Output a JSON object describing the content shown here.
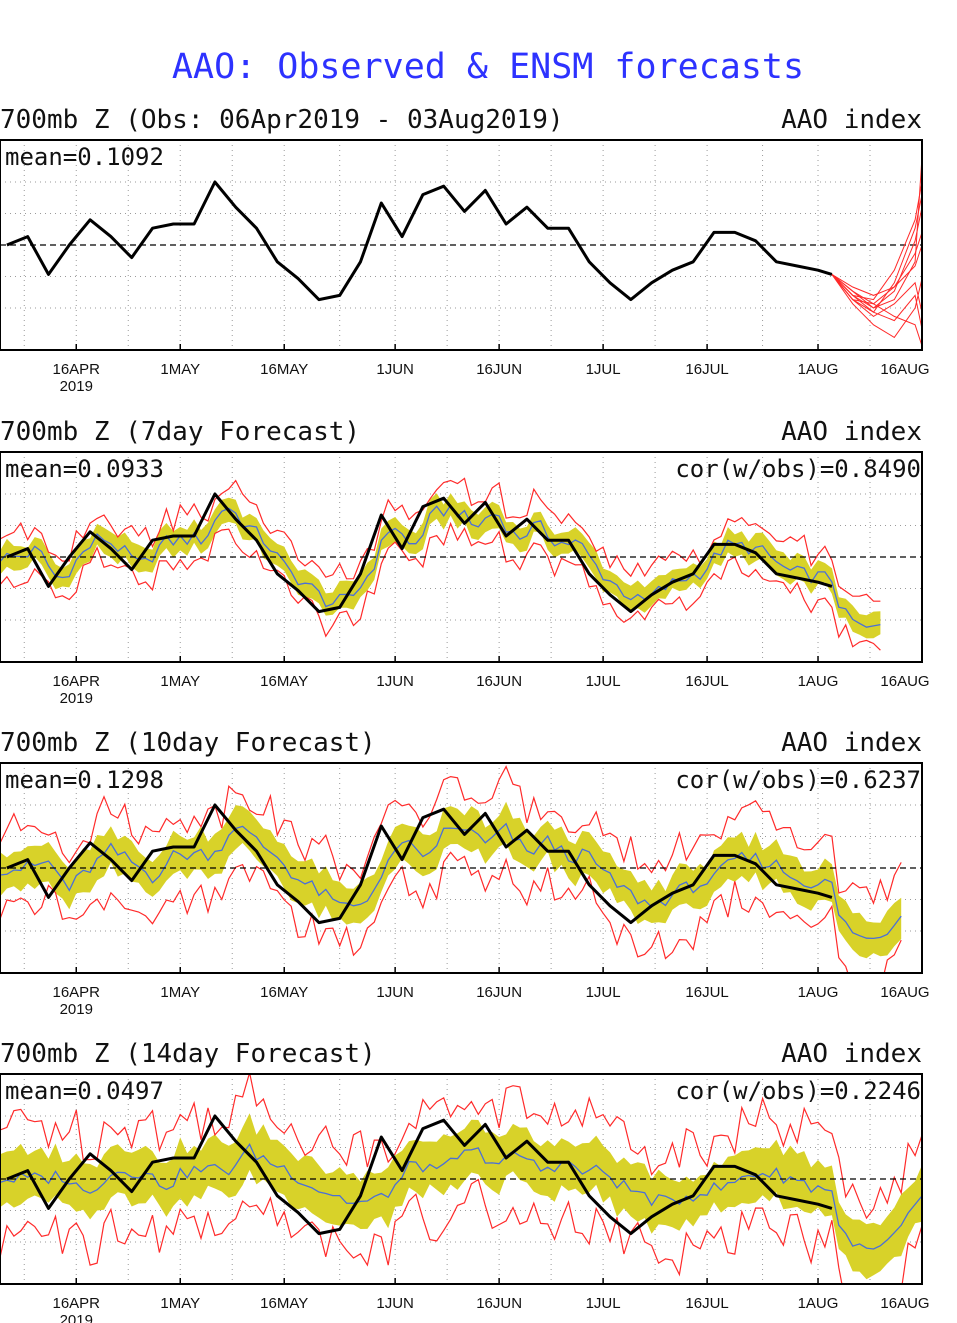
{
  "page": {
    "title": "AAO: Observed & ENSM forecasts"
  },
  "x_tick_labels": [
    "16APR",
    "1MAY",
    "16MAY",
    "1JUN",
    "16JUN",
    "1JUL",
    "16JUL",
    "1AUG",
    "16AUG"
  ],
  "x_year_label": "2019",
  "colors": {
    "title": "#2d32ff",
    "observed": "#000000",
    "ensemble_mean": "#4a6fd8",
    "spread_band": "#d8d229",
    "bounds": "#ff2a2a",
    "zero_line": "#000000",
    "grid": "#9a9a9a"
  },
  "chart_data": [
    {
      "type": "line",
      "title": "700mb Z (Obs: 06Apr2019 - 03Aug2019)",
      "index_label": "AAO index",
      "mean_label": "mean=0.1092",
      "xlim": [
        "2019-04-05",
        "2019-08-16"
      ],
      "ylim": [
        -2.5,
        2.5
      ],
      "grid": true,
      "series": [
        {
          "role": "observed",
          "x": [
            "2019-04-06",
            "2019-04-09",
            "2019-04-12",
            "2019-04-15",
            "2019-04-18",
            "2019-04-21",
            "2019-04-24",
            "2019-04-27",
            "2019-04-30",
            "2019-05-03",
            "2019-05-06",
            "2019-05-09",
            "2019-05-12",
            "2019-05-15",
            "2019-05-18",
            "2019-05-21",
            "2019-05-24",
            "2019-05-27",
            "2019-05-30",
            "2019-06-02",
            "2019-06-05",
            "2019-06-08",
            "2019-06-11",
            "2019-06-14",
            "2019-06-17",
            "2019-06-20",
            "2019-06-23",
            "2019-06-26",
            "2019-06-29",
            "2019-07-02",
            "2019-07-05",
            "2019-07-08",
            "2019-07-11",
            "2019-07-14",
            "2019-07-17",
            "2019-07-20",
            "2019-07-23",
            "2019-07-26",
            "2019-07-29",
            "2019-08-01",
            "2019-08-03"
          ],
          "values": [
            0.0,
            0.2,
            -0.7,
            0.0,
            0.6,
            0.2,
            -0.3,
            0.4,
            0.5,
            0.5,
            1.5,
            0.9,
            0.4,
            -0.4,
            -0.8,
            -1.3,
            -1.2,
            -0.4,
            1.0,
            0.2,
            1.2,
            1.4,
            0.8,
            1.3,
            0.5,
            0.9,
            0.4,
            0.4,
            -0.4,
            -0.9,
            -1.3,
            -0.9,
            -0.6,
            -0.4,
            0.3,
            0.3,
            0.1,
            -0.4,
            -0.5,
            -0.6,
            -0.7
          ]
        },
        {
          "role": "members",
          "x": [
            "2019-08-03",
            "2019-08-06",
            "2019-08-09",
            "2019-08-12",
            "2019-08-15",
            "2019-08-16"
          ],
          "members": [
            [
              -0.7,
              -1.2,
              -1.5,
              -1.3,
              -0.4,
              2.1
            ],
            [
              -0.7,
              -1.3,
              -1.6,
              -0.9,
              0.4,
              1.2
            ],
            [
              -0.7,
              -1.1,
              -1.4,
              -1.7,
              -1.9,
              -2.4
            ],
            [
              -0.7,
              -1.2,
              -1.3,
              -0.6,
              0.6,
              1.5
            ],
            [
              -0.7,
              -1.4,
              -1.9,
              -2.2,
              -1.5,
              -0.8
            ],
            [
              -0.7,
              -1.0,
              -1.2,
              -1.0,
              -0.2,
              0.3
            ],
            [
              -0.7,
              -1.3,
              -1.7,
              -1.4,
              -0.9,
              -1.6
            ],
            [
              -0.7,
              -1.1,
              -1.5,
              -1.1,
              0.1,
              0.9
            ],
            [
              -0.7,
              -1.2,
              -1.6,
              -1.8,
              -1.2,
              -2.0
            ],
            [
              -0.7,
              -1.3,
              -1.4,
              -1.0,
              -0.5,
              0.0
            ]
          ]
        }
      ]
    },
    {
      "type": "line",
      "title": "700mb Z (7day Forecast)",
      "index_label": "AAO index",
      "mean_label": "mean=0.0933",
      "cor_label": "cor(w/obs)=0.8490",
      "lead_days": 7,
      "xlim": [
        "2019-04-05",
        "2019-08-16"
      ],
      "ylim": [
        -2.5,
        2.5
      ],
      "grid": true
    },
    {
      "type": "line",
      "title": "700mb Z (10day Forecast)",
      "index_label": "AAO index",
      "mean_label": "mean=0.1298",
      "cor_label": "cor(w/obs)=0.6237",
      "lead_days": 10,
      "xlim": [
        "2019-04-05",
        "2019-08-16"
      ],
      "ylim": [
        -2.5,
        2.5
      ],
      "grid": true
    },
    {
      "type": "line",
      "title": "700mb Z (14day Forecast)",
      "index_label": "AAO index",
      "mean_label": "mean=0.0497",
      "cor_label": "cor(w/obs)=0.2246",
      "lead_days": 14,
      "xlim": [
        "2019-04-05",
        "2019-08-16"
      ],
      "ylim": [
        -2.5,
        2.5
      ],
      "grid": true
    }
  ]
}
